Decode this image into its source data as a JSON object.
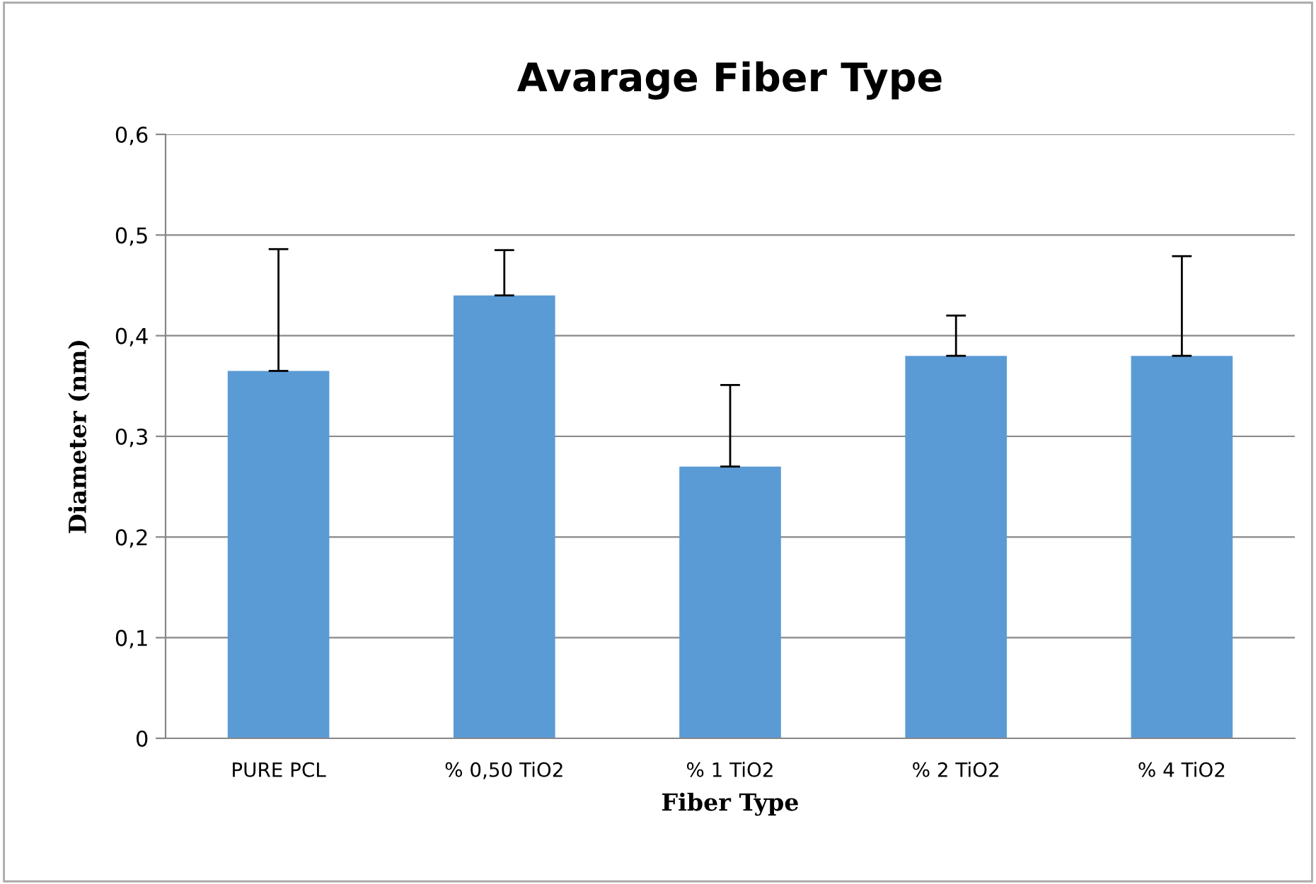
{
  "chart_data": {
    "type": "bar",
    "title": "Avarage Fiber Type",
    "xlabel": "Fiber Type",
    "ylabel": "Diameter (nm)",
    "categories": [
      "PURE PCL",
      "% 0,50 TiO2",
      "% 1 TiO2",
      "% 2 TiO2",
      "% 4 TiO2"
    ],
    "values": [
      0.365,
      0.44,
      0.27,
      0.38,
      0.38
    ],
    "errors": [
      [
        0.365,
        0.486
      ],
      [
        0.44,
        0.485
      ],
      [
        0.27,
        0.351
      ],
      [
        0.38,
        0.42
      ],
      [
        0.38,
        0.479
      ]
    ],
    "color": "#5b9bd5",
    "ylim": [
      0,
      0.6
    ],
    "yticks": [
      0,
      {
        "value": 0.1,
        "label": "0,1"
      },
      {
        "value": 0.2,
        "label": "0,2"
      },
      {
        "value": 0.3,
        "label": "0,3"
      },
      {
        "value": 0.4,
        "label": "0,4"
      },
      {
        "value": 0.5,
        "label": "0,5"
      },
      {
        "value": 0.6,
        "label": "0,6"
      }
    ],
    "grid": "y",
    "legend": false
  }
}
